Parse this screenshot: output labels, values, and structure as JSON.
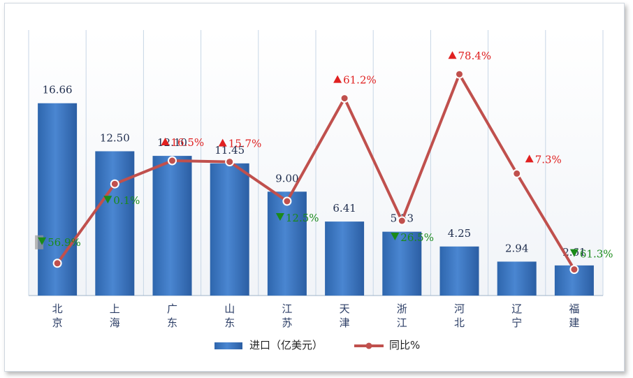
{
  "chart_data": {
    "type": "bar+line",
    "categories": [
      "北京",
      "上海",
      "广东",
      "山东",
      "江苏",
      "天津",
      "浙江",
      "河北",
      "辽宁",
      "福建"
    ],
    "series": [
      {
        "name": "进口（亿美元）",
        "type": "bar",
        "color": "#3a78c3",
        "values": [
          16.66,
          12.5,
          12.1,
          11.45,
          9.0,
          6.41,
          5.53,
          4.25,
          2.94,
          2.61
        ],
        "labels": [
          "16.66",
          "12.50",
          "12.10",
          "11.45",
          "9.00",
          "6.41",
          "5.53",
          "4.25",
          "2.94",
          "2.61"
        ]
      },
      {
        "name": "同比%",
        "type": "line",
        "color": "#c0504d",
        "values": [
          -56.9,
          -0.1,
          16.5,
          15.7,
          -12.5,
          61.2,
          -26.5,
          78.4,
          7.3,
          -61.3
        ],
        "labels": [
          "56.9%",
          "0.1%",
          "16.5%",
          "15.7%",
          "12.5%",
          "61.2%",
          "26.5%",
          "78.4%",
          "7.3%",
          "61.3%"
        ],
        "direction": [
          "down",
          "down",
          "up",
          "up",
          "down",
          "up",
          "down",
          "up",
          "up",
          "down"
        ]
      }
    ],
    "legend": {
      "position": "bottom",
      "items": [
        "进口（亿美元）",
        "同比%"
      ]
    },
    "grid": "vertical"
  }
}
